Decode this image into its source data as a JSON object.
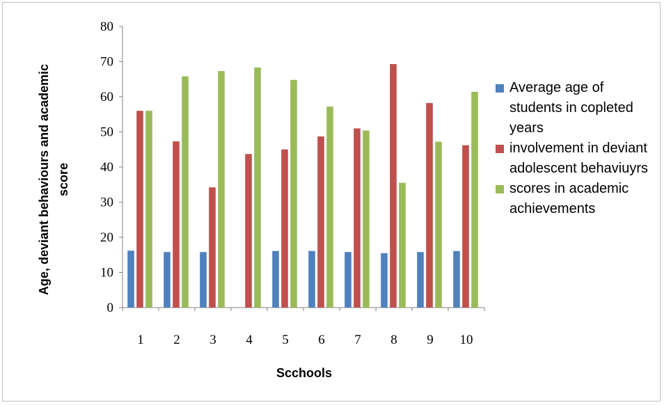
{
  "chart_data": {
    "type": "bar",
    "categories": [
      "1",
      "2",
      "3",
      "4",
      "5",
      "6",
      "7",
      "8",
      "9",
      "10"
    ],
    "series": [
      {
        "name": "Average age of students in copleted years",
        "color": "#4f81bd",
        "values": [
          16.2,
          15.8,
          15.8,
          null,
          16.1,
          16.1,
          15.8,
          15.5,
          15.8,
          16.1
        ]
      },
      {
        "name": "involvement in deviant adolescent behaviuyrs",
        "color": "#c0504d",
        "values": [
          56,
          47.3,
          34.2,
          43.7,
          45,
          48.7,
          51,
          69.3,
          58.2,
          46.2
        ]
      },
      {
        "name": "scores in academic achievements",
        "color": "#9bbb59",
        "values": [
          56,
          65.8,
          67.3,
          68.3,
          64.8,
          57.2,
          50.4,
          35.5,
          47.2,
          61.4
        ]
      }
    ],
    "xlabel": "Scchools",
    "ylabel": "Age, deviant behaviours and academic score",
    "ylim": [
      0,
      80
    ],
    "yticks": [
      0,
      10,
      20,
      30,
      40,
      50,
      60,
      70,
      80
    ],
    "grid": false,
    "legend_position": "right"
  }
}
